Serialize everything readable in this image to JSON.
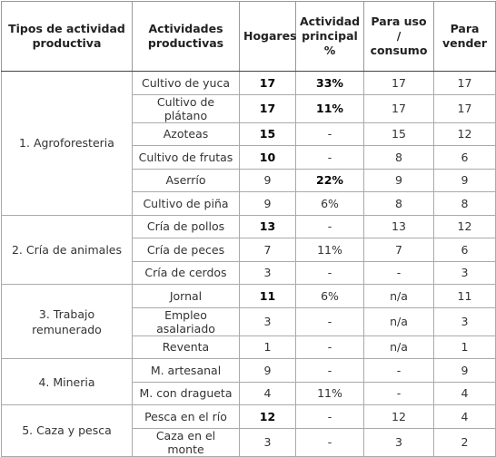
{
  "table": {
    "header": [
      "Tipos de actividad productiva",
      "Actividades productivas",
      "Hogares",
      "Actividad principal %",
      "Para uso / consumo",
      "Para vender"
    ],
    "groups": [
      {
        "name": "1. Agroforesteria",
        "rows": [
          {
            "cells": [
              "Cultivo de yuca",
              "17",
              "33%",
              "17",
              "17"
            ],
            "bold": [
              1,
              2
            ]
          },
          {
            "cells": [
              "Cultivo de plátano",
              "17",
              "11%",
              "17",
              "17"
            ],
            "bold": [
              1,
              2
            ]
          },
          {
            "cells": [
              "Azoteas",
              "15",
              "-",
              "15",
              "12"
            ],
            "bold": [
              1
            ]
          },
          {
            "cells": [
              "Cultivo de frutas",
              "10",
              "-",
              "8",
              "6"
            ],
            "bold": [
              1
            ]
          },
          {
            "cells": [
              "Aserrío",
              "9",
              "22%",
              "9",
              "9"
            ],
            "bold": [
              2
            ]
          },
          {
            "cells": [
              "Cultivo de piña",
              "9",
              "6%",
              "8",
              "8"
            ],
            "bold": []
          }
        ]
      },
      {
        "name": "2. Cría de animales",
        "rows": [
          {
            "cells": [
              "Cría de pollos",
              "13",
              "-",
              "13",
              "12"
            ],
            "bold": [
              1
            ]
          },
          {
            "cells": [
              "Cría de peces",
              "7",
              "11%",
              "7",
              "6"
            ],
            "bold": []
          },
          {
            "cells": [
              "Cría de cerdos",
              "3",
              "-",
              "-",
              "3"
            ],
            "bold": []
          }
        ]
      },
      {
        "name": "3. Trabajo remunerado",
        "rows": [
          {
            "cells": [
              "Jornal",
              "11",
              "6%",
              "n/a",
              "11"
            ],
            "bold": [
              1
            ]
          },
          {
            "cells": [
              "Empleo asalariado",
              "3",
              "-",
              "n/a",
              "3"
            ],
            "bold": []
          },
          {
            "cells": [
              "Reventa",
              "1",
              "-",
              "n/a",
              "1"
            ],
            "bold": []
          }
        ]
      },
      {
        "name": "4. Mineria",
        "rows": [
          {
            "cells": [
              "M. artesanal",
              "9",
              "-",
              "-",
              "9"
            ],
            "bold": []
          },
          {
            "cells": [
              "M. con dragueta",
              "4",
              "11%",
              "-",
              "4"
            ],
            "bold": []
          }
        ]
      },
      {
        "name": "5. Caza y pesca",
        "rows": [
          {
            "cells": [
              "Pesca en el río",
              "12",
              "-",
              "12",
              "4"
            ],
            "bold": [
              1
            ]
          },
          {
            "cells": [
              "Caza en el monte",
              "3",
              "-",
              "3",
              "2"
            ],
            "bold": []
          }
        ]
      }
    ]
  }
}
